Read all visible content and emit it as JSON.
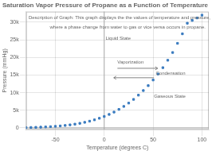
{
  "chart_data": {
    "type": "scatter",
    "title": "Saturation Vapor Pressure of Propane as a Function of Temperature",
    "xlabel": "Temperature (degrees C)",
    "ylabel": "Pressure (mmHg)",
    "x": [
      -80,
      -75,
      -70,
      -65,
      -60,
      -55,
      -50,
      -45,
      -40,
      -35,
      -30,
      -25,
      -20,
      -15,
      -10,
      -5,
      0,
      5,
      10,
      15,
      20,
      25,
      30,
      35,
      40,
      45,
      50,
      55,
      60,
      65,
      70,
      75,
      80,
      85,
      90,
      95,
      100
    ],
    "values": [
      100,
      130,
      170,
      220,
      280,
      360,
      450,
      565,
      700,
      875,
      1075,
      1310,
      1590,
      1920,
      2300,
      2740,
      3250,
      3830,
      4500,
      5260,
      6100,
      7050,
      8100,
      9300,
      10600,
      12000,
      13600,
      15300,
      17100,
      19200,
      21400,
      24000,
      26700,
      29700,
      30500,
      31200,
      32000
    ],
    "color": "#3a7bbf",
    "marker": "square",
    "xlim": [
      -80,
      107
    ],
    "ylim": [
      -500,
      33000
    ],
    "xticks": [
      -50,
      0,
      50,
      100
    ],
    "yticks": [
      0,
      {
        "value": 5000,
        "label": "5k"
      },
      {
        "value": 10000,
        "label": "10k"
      },
      {
        "value": 15000,
        "label": "15k"
      },
      {
        "value": 20000,
        "label": "20k"
      },
      {
        "value": 25000,
        "label": "25k"
      },
      {
        "value": 30000,
        "label": "30k"
      }
    ],
    "grid": true,
    "reference_lines": [
      {
        "axis": "x",
        "value": 0
      },
      {
        "axis": "y",
        "value": 0
      }
    ],
    "annotations": [
      {
        "text": "Description of Graph: This graph displays the the values of temperature and pressure,"
      },
      {
        "text": "where a phase change from water to gas or vice versa occurs in propane."
      },
      {
        "text": "Liquid State"
      },
      {
        "text": "Gaseous State"
      },
      {
        "text": "Vaporization"
      },
      {
        "text": "Condensation"
      }
    ]
  }
}
